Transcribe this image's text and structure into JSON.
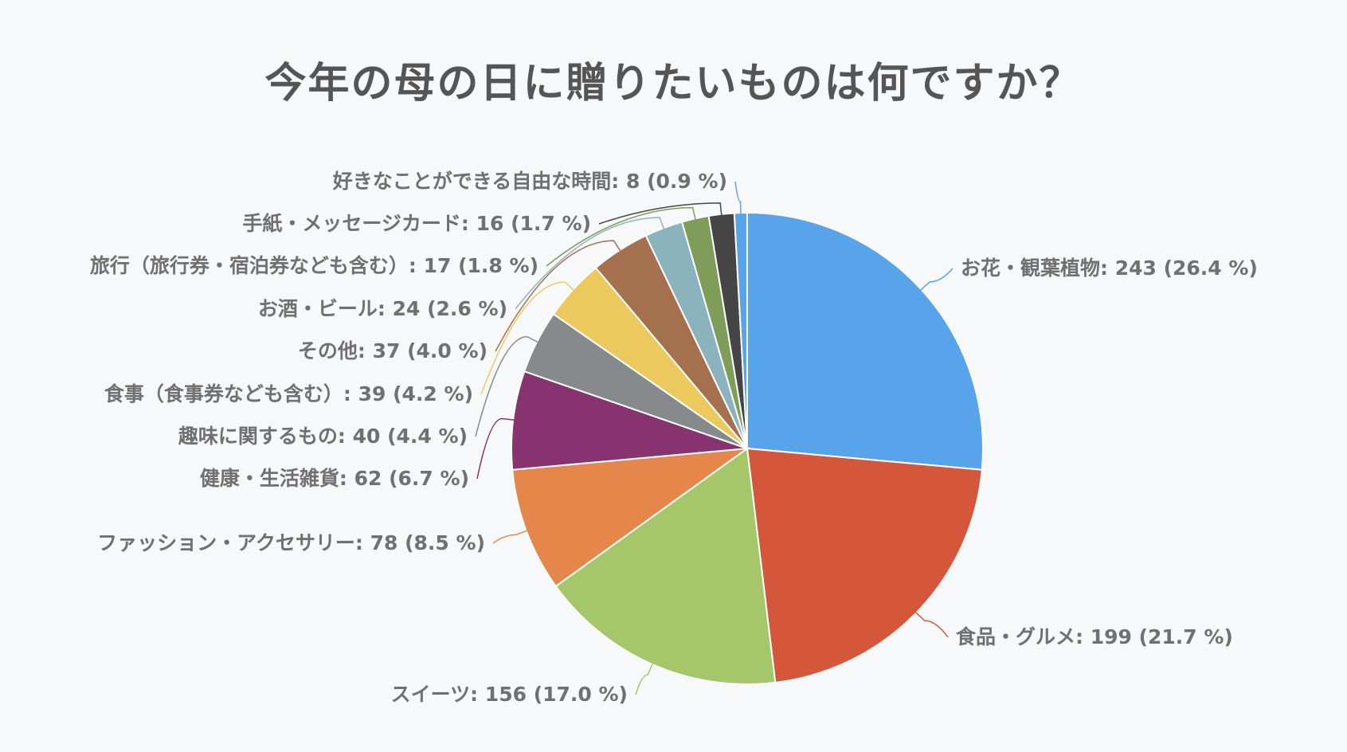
{
  "chart_data": {
    "type": "pie",
    "title": "今年の母の日に贈りたいものは何ですか？",
    "total": 919,
    "start_angle_deg": 0,
    "direction": "clockwise",
    "legend": "none (data labels with leader lines)",
    "slices": [
      {
        "label": "お花・観葉植物",
        "value": 243,
        "percent": 26.4,
        "color": "#58a4ea"
      },
      {
        "label": "食品・グルメ",
        "value": 199,
        "percent": 21.7,
        "color": "#d4573c"
      },
      {
        "label": "スイーツ",
        "value": 156,
        "percent": 17.0,
        "color": "#a5c769"
      },
      {
        "label": "ファッション・アクセサリー",
        "value": 78,
        "percent": 8.5,
        "color": "#e5874b"
      },
      {
        "label": "健康・生活雑貨",
        "value": 62,
        "percent": 6.7,
        "color": "#86336f"
      },
      {
        "label": "趣味に関するもの",
        "value": 40,
        "percent": 4.4,
        "color": "#868a8d"
      },
      {
        "label": "食事（食事券なども含む）",
        "value": 39,
        "percent": 4.2,
        "color": "#ebc95d"
      },
      {
        "label": "その他",
        "value": 37,
        "percent": 4.0,
        "color": "#a4704d"
      },
      {
        "label": "お酒・ビール",
        "value": 24,
        "percent": 2.6,
        "color": "#8bb3be"
      },
      {
        "label": "旅行（旅行券・宿泊券なども含む）",
        "value": 17,
        "percent": 1.8,
        "color": "#7e9d58"
      },
      {
        "label": "手紙・メッセージカード",
        "value": 16,
        "percent": 1.7,
        "color": "#454545"
      },
      {
        "label": "好きなことができる自由な時間",
        "value": 8,
        "percent": 0.9,
        "color": "#58a4ea"
      }
    ]
  },
  "labels": [
    "お花・観葉植物: 243 (26.4 %)",
    "食品・グルメ: 199 (21.7 %)",
    "スイーツ: 156 (17.0 %)",
    "ファッション・アクセサリー: 78 (8.5 %)",
    "健康・生活雑貨: 62 (6.7 %)",
    "趣味に関するもの: 40 (4.4 %)",
    "食事（食事券なども含む）: 39 (4.2 %)",
    "その他: 37 (4.0 %)",
    "お酒・ビール: 24 (2.6 %)",
    "旅行（旅行券・宿泊券なども含む）: 17 (1.8 %)",
    "手紙・メッセージカード: 16 (1.7 %)",
    "好きなことができる自由な時間: 8 (0.9 %)"
  ],
  "colors": {
    "background": "#f7f8fa",
    "title": "#555555",
    "label": "#707070"
  }
}
